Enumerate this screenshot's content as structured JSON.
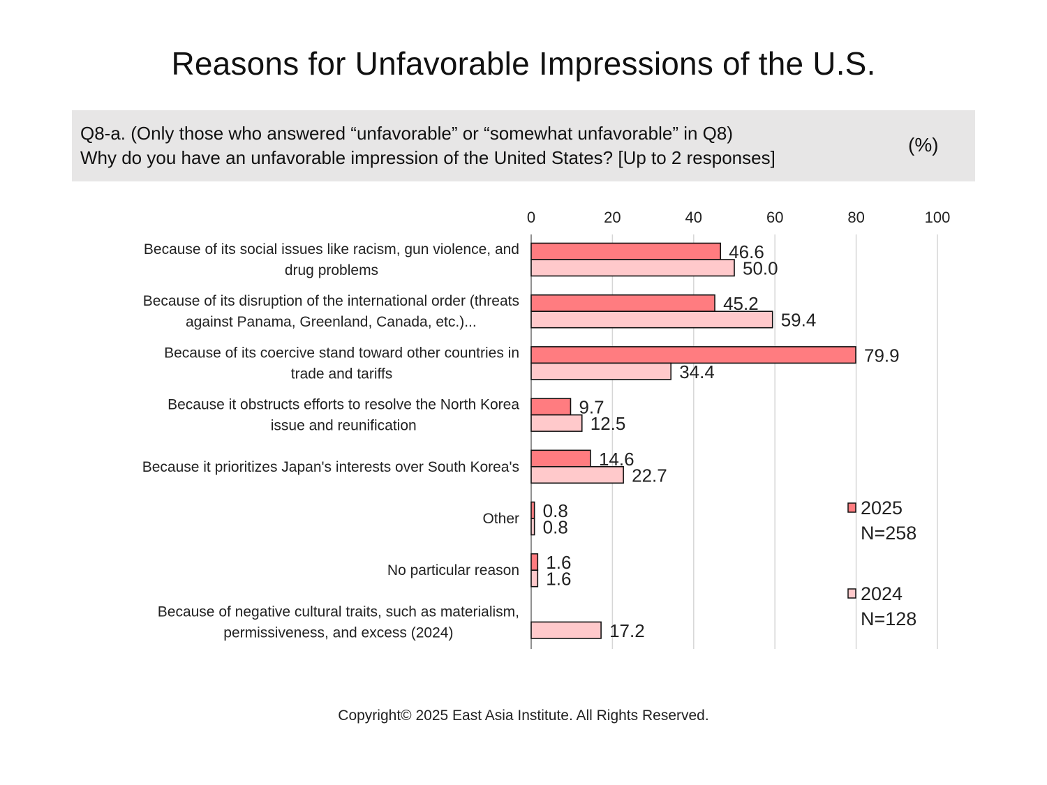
{
  "page": {
    "title": "Reasons for Unfavorable Impressions of the U.S.",
    "question_line_1": "Q8-a. (Only those who answered “unfavorable” or “somewhat unfavorable” in Q8)",
    "question_line_2": "Why do you have an unfavorable impression of the United States? [Up to 2 responses]",
    "unit": "(%)",
    "copyright": "Copyright© 2025 East Asia Institute. All Rights Reserved."
  },
  "chart_data": {
    "type": "bar",
    "orientation": "horizontal",
    "categories": [
      [
        "Because of its social issues like racism, gun violence, and",
        "drug problems"
      ],
      [
        "Because of its disruption of the international order (threats",
        "against Panama, Greenland, Canada, etc.)..."
      ],
      [
        "Because of its coercive stand toward other countries in",
        "trade and tariffs"
      ],
      [
        "Because it obstructs efforts to resolve the North Korea",
        "issue and reunification"
      ],
      [
        "Because it prioritizes Japan's interests over South Korea's"
      ],
      [
        "Other"
      ],
      [
        "No particular reason"
      ],
      [
        "Because of negative cultural traits, such as materialism,",
        "permissiveness, and excess (2024)"
      ]
    ],
    "series": [
      {
        "name": "2025",
        "n_label": "N=258",
        "color": "#ff7c80",
        "values": [
          46.6,
          45.2,
          79.9,
          9.7,
          14.6,
          0.8,
          1.6,
          null
        ],
        "labels": [
          "46.6",
          "45.2",
          "79.9",
          "9.7",
          "14.6",
          "0.8",
          "1.6",
          ""
        ]
      },
      {
        "name": "2024",
        "n_label": "N=128",
        "color": "#ffc9cb",
        "values": [
          50.0,
          59.4,
          34.4,
          12.5,
          22.7,
          0.8,
          1.6,
          17.2
        ],
        "labels": [
          "50.0",
          "59.4",
          "34.4",
          "12.5",
          "22.7",
          "0.8",
          "1.6",
          "17.2"
        ]
      }
    ],
    "xlim": [
      0,
      100
    ],
    "xticks": [
      "0",
      "20",
      "40",
      "60",
      "80",
      "100"
    ],
    "xtick_values": [
      0,
      20,
      40,
      60,
      80,
      100
    ],
    "grid": true,
    "legend_position": "right"
  }
}
